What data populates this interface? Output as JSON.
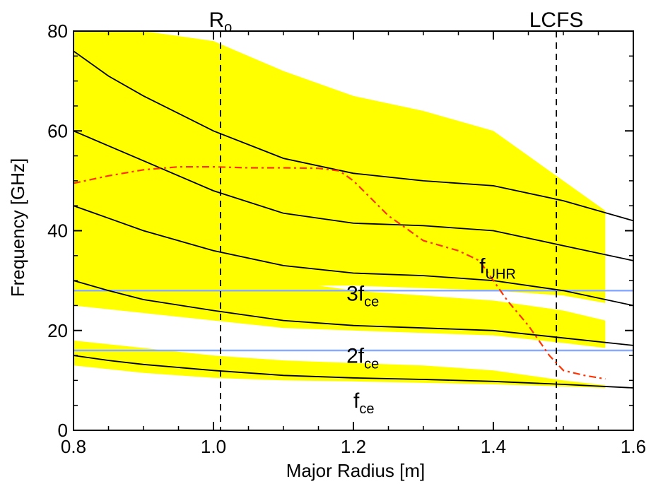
{
  "chart_data": {
    "type": "line",
    "xlabel": "Major Radius [m]",
    "ylabel": "Frequency [GHz]",
    "xlim": [
      0.8,
      1.6
    ],
    "ylim": [
      0,
      80
    ],
    "xticks": [
      "0.8",
      "1.0",
      "1.2",
      "1.4",
      "1.6"
    ],
    "yticks": [
      "0",
      "20",
      "40",
      "60",
      "80"
    ],
    "grid": false,
    "colors": {
      "band": "#ffff00",
      "curve": "#000000",
      "uhr": "#ff3300",
      "harmonic": "#88aaff"
    },
    "bands": [
      {
        "x": [
          0.8,
          0.9,
          1.0,
          1.1,
          1.2,
          1.3,
          1.4,
          1.5,
          1.56
        ],
        "upper": [
          18,
          16.5,
          15,
          14,
          13.5,
          13,
          12,
          10,
          9
        ],
        "lower": [
          13,
          11.5,
          10.5,
          10,
          9.8,
          9.5,
          9.2,
          8.8,
          8.5
        ]
      },
      {
        "x": [
          0.8,
          0.9,
          1.0,
          1.1,
          1.2,
          1.3,
          1.4,
          1.5,
          1.56
        ],
        "upper": [
          36,
          34,
          32,
          30,
          28,
          27,
          26,
          24,
          22
        ],
        "lower": [
          25,
          23.5,
          22,
          20.5,
          20,
          19.5,
          19,
          17.5,
          16.5
        ]
      },
      {
        "x": [
          0.8,
          0.9,
          1.0,
          1.1,
          1.2,
          1.3,
          1.4,
          1.5,
          1.56
        ],
        "upper": [
          57,
          52,
          46,
          42,
          39,
          37.5,
          36.5,
          36,
          35
        ],
        "lower": [
          33,
          31,
          30,
          29,
          29,
          28.5,
          28,
          27,
          25.5
        ]
      },
      {
        "x": [
          0.8,
          0.9,
          1.0,
          1.1,
          1.2,
          1.3,
          1.4,
          1.5,
          1.56
        ],
        "upper": [
          80,
          80,
          78,
          72,
          67,
          64,
          60,
          50,
          44
        ],
        "lower": [
          44,
          42,
          40,
          39,
          38,
          37,
          36.5,
          35,
          34
        ]
      }
    ],
    "series": [
      {
        "x": [
          0.8,
          0.85,
          0.9,
          1.0,
          1.1,
          1.2,
          1.3,
          1.4,
          1.5,
          1.6
        ],
        "y": [
          15,
          14,
          13.2,
          12,
          11,
          10.5,
          10.2,
          9.8,
          9.2,
          8.5
        ]
      },
      {
        "x": [
          0.8,
          0.85,
          0.9,
          1.0,
          1.1,
          1.2,
          1.3,
          1.4,
          1.5,
          1.6
        ],
        "y": [
          30,
          28,
          26.2,
          24,
          22,
          21,
          20.5,
          20,
          18.5,
          17
        ]
      },
      {
        "x": [
          0.8,
          0.85,
          0.9,
          1.0,
          1.1,
          1.2,
          1.3,
          1.4,
          1.5,
          1.6
        ],
        "y": [
          45,
          42.5,
          40,
          36,
          33,
          31.5,
          31,
          30,
          28,
          25
        ]
      },
      {
        "x": [
          0.8,
          0.85,
          0.9,
          1.0,
          1.1,
          1.2,
          1.3,
          1.4,
          1.5,
          1.6
        ],
        "y": [
          60,
          57,
          54,
          48,
          43.5,
          41.5,
          41,
          40,
          37,
          34
        ]
      },
      {
        "x": [
          0.8,
          0.85,
          0.9,
          1.0,
          1.1,
          1.2,
          1.3,
          1.4,
          1.5,
          1.6
        ],
        "y": [
          76,
          71,
          67,
          60,
          54.5,
          51.5,
          50,
          49,
          46,
          42
        ]
      },
      {
        "name": "f_UHR",
        "x": [
          0.8,
          0.85,
          0.9,
          0.95,
          1.0,
          1.05,
          1.1,
          1.15,
          1.18,
          1.2,
          1.25,
          1.3,
          1.35,
          1.38,
          1.4,
          1.42,
          1.45,
          1.48,
          1.5,
          1.53,
          1.56
        ],
        "y": [
          49.5,
          51,
          52.2,
          52.8,
          52.8,
          52.6,
          52.6,
          52.5,
          52,
          50,
          43,
          38,
          36,
          34,
          30,
          26,
          21,
          15,
          12,
          11,
          10.3
        ]
      }
    ],
    "hlines": [
      {
        "y": 28,
        "label": "3f",
        "sub": "ce"
      },
      {
        "y": 16,
        "label": "2f",
        "sub": "ce"
      }
    ],
    "vlines": [
      {
        "x": 1.01,
        "label": "R",
        "sub": "o"
      },
      {
        "x": 1.49,
        "label": "LCFS",
        "sub": ""
      }
    ],
    "annotations": [
      {
        "text": "f",
        "sub": "UHR",
        "x": 1.38,
        "y": 31.5,
        "color": "#ff3300"
      },
      {
        "text": "3f",
        "sub": "ce",
        "x": 1.19,
        "y": 26,
        "color": "#000000"
      },
      {
        "text": "2f",
        "sub": "ce",
        "x": 1.19,
        "y": 13.5,
        "color": "#000000"
      },
      {
        "text": "f",
        "sub": "ce",
        "x": 1.2,
        "y": 4.5,
        "color": "#000000"
      }
    ]
  }
}
